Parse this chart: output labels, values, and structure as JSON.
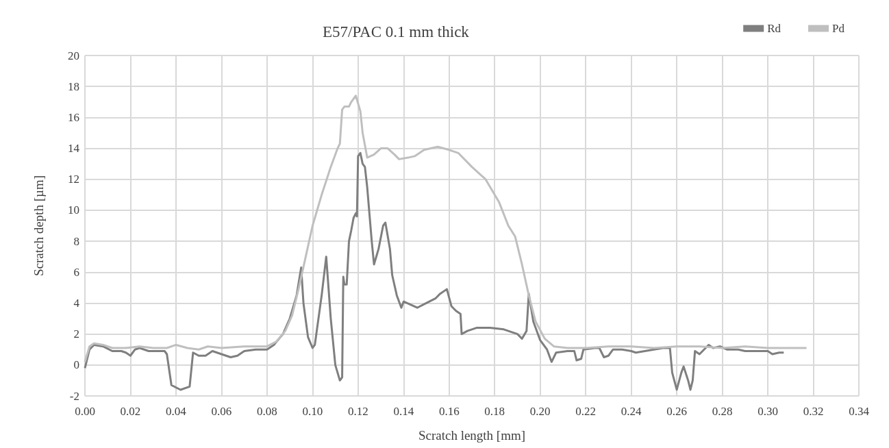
{
  "chart_data": {
    "type": "line",
    "title": "E57/PAC 0.1 mm thick",
    "xlabel": "Scratch length [mm]",
    "ylabel": "Scratch depth [µm]",
    "xlim": [
      0,
      0.34
    ],
    "xticks": [
      {
        "value": 0,
        "label": "0.00"
      },
      0.02,
      0.04,
      0.06,
      0.08,
      {
        "value": 0.1,
        "label": "0.10"
      },
      0.12,
      0.14,
      0.16,
      0.18,
      {
        "value": 0.2,
        "label": "0.20"
      },
      0.22,
      0.24,
      0.26,
      0.28,
      {
        "value": 0.3,
        "label": "0.30"
      },
      0.32,
      0.34
    ],
    "ylim": [
      -2,
      20
    ],
    "yticks": [
      -2,
      0,
      2,
      4,
      6,
      8,
      10,
      12,
      14,
      16,
      18,
      20
    ],
    "grid": true,
    "legend": "top right",
    "marker": "none",
    "line_style": "solid",
    "series": [
      {
        "name": "Rd",
        "color": "#7f7f7f",
        "x": [
          0,
          0.002,
          0.004,
          0.008,
          0.012,
          0.016,
          0.018,
          0.02,
          0.022,
          0.024,
          0.028,
          0.035,
          0.036,
          0.038,
          0.042,
          0.046,
          0.0475,
          0.05,
          0.053,
          0.056,
          0.06,
          0.064,
          0.067,
          0.07,
          0.075,
          0.08,
          0.083,
          0.087,
          0.09,
          0.093,
          0.095,
          0.096,
          0.098,
          0.1,
          0.101,
          0.104,
          0.106,
          0.108,
          0.11,
          0.112,
          0.113,
          0.1135,
          0.114,
          0.115,
          0.116,
          0.117,
          0.118,
          0.119,
          0.1195,
          0.12,
          0.121,
          0.122,
          0.123,
          0.124,
          0.126,
          0.127,
          0.129,
          0.131,
          0.132,
          0.134,
          0.135,
          0.137,
          0.139,
          0.14,
          0.143,
          0.146,
          0.15,
          0.154,
          0.156,
          0.159,
          0.161,
          0.163,
          0.165,
          0.1655,
          0.168,
          0.172,
          0.178,
          0.184,
          0.19,
          0.192,
          0.194,
          0.195,
          0.197,
          0.2,
          0.203,
          0.205,
          0.207,
          0.212,
          0.215,
          0.216,
          0.218,
          0.219,
          0.224,
          0.226,
          0.228,
          0.23,
          0.232,
          0.236,
          0.24,
          0.242,
          0.246,
          0.25,
          0.254,
          0.257,
          0.258,
          0.26,
          0.262,
          0.263,
          0.265,
          0.266,
          0.267,
          0.268,
          0.27,
          0.272,
          0.274,
          0.276,
          0.279,
          0.282,
          0.287,
          0.29,
          0.295,
          0.3,
          0.302,
          0.305,
          0.307
        ],
        "values": [
          -0.2,
          1.0,
          1.3,
          1.2,
          0.9,
          0.9,
          0.8,
          0.6,
          1.0,
          1.1,
          0.9,
          0.9,
          0.7,
          -1.3,
          -1.6,
          -1.4,
          0.8,
          0.6,
          0.6,
          0.9,
          0.7,
          0.5,
          0.6,
          0.9,
          1.0,
          1.0,
          1.3,
          2.0,
          3.0,
          4.5,
          6.3,
          4.0,
          1.8,
          1.1,
          1.3,
          4.5,
          7.0,
          3.0,
          0,
          -1.0,
          -0.8,
          5.7,
          5.2,
          5.2,
          8.0,
          8.7,
          9.5,
          9.8,
          9.6,
          13.5,
          13.7,
          13.0,
          12.8,
          11.5,
          8.0,
          6.5,
          7.5,
          9.0,
          9.2,
          7.5,
          5.8,
          4.5,
          3.7,
          4.1,
          3.9,
          3.7,
          4.0,
          4.3,
          4.6,
          4.9,
          3.8,
          3.5,
          3.3,
          2.0,
          2.2,
          2.4,
          2.4,
          2.3,
          2.0,
          1.7,
          2.2,
          4.6,
          2.8,
          1.6,
          1.0,
          0.2,
          0.8,
          0.9,
          0.9,
          0.3,
          0.4,
          1.0,
          1.1,
          1.1,
          0.5,
          0.6,
          1.0,
          1.0,
          0.9,
          0.8,
          0.9,
          1.0,
          1.1,
          1.1,
          -0.5,
          -1.6,
          -0.5,
          -0.1,
          -1.0,
          -1.6,
          -1.0,
          0.9,
          0.7,
          1.0,
          1.3,
          1.1,
          1.2,
          1.0,
          1.0,
          0.9,
          0.9,
          0.9,
          0.7,
          0.8,
          0.8
        ]
      },
      {
        "name": "Pd",
        "color": "#bfbfbf",
        "x": [
          0,
          0.002,
          0.004,
          0.008,
          0.012,
          0.018,
          0.024,
          0.03,
          0.036,
          0.04,
          0.045,
          0.05,
          0.054,
          0.06,
          0.07,
          0.08,
          0.084,
          0.088,
          0.091,
          0.094,
          0.097,
          0.1,
          0.104,
          0.108,
          0.111,
          0.112,
          0.113,
          0.114,
          0.116,
          0.117,
          0.119,
          0.121,
          0.122,
          0.124,
          0.127,
          0.13,
          0.133,
          0.136,
          0.138,
          0.142,
          0.145,
          0.149,
          0.155,
          0.16,
          0.164,
          0.17,
          0.176,
          0.182,
          0.186,
          0.189,
          0.192,
          0.195,
          0.198,
          0.202,
          0.206,
          0.212,
          0.22,
          0.23,
          0.24,
          0.25,
          0.26,
          0.27,
          0.28,
          0.29,
          0.3,
          0.31,
          0.317
        ],
        "values": [
          0.2,
          1.2,
          1.4,
          1.3,
          1.1,
          1.1,
          1.2,
          1.1,
          1.1,
          1.3,
          1.1,
          1.0,
          1.2,
          1.1,
          1.2,
          1.2,
          1.5,
          2.2,
          3.2,
          5.0,
          7.0,
          9.0,
          11.0,
          12.8,
          14.0,
          14.3,
          16.5,
          16.7,
          16.7,
          17.0,
          17.4,
          16.4,
          15.0,
          13.4,
          13.6,
          14.0,
          14.0,
          13.6,
          13.3,
          13.4,
          13.5,
          13.9,
          14.1,
          13.9,
          13.7,
          12.8,
          12.0,
          10.5,
          9.0,
          8.3,
          6.5,
          4.5,
          2.8,
          1.7,
          1.2,
          1.1,
          1.1,
          1.2,
          1.2,
          1.1,
          1.2,
          1.2,
          1.1,
          1.2,
          1.1,
          1.1,
          1.1
        ]
      }
    ]
  }
}
